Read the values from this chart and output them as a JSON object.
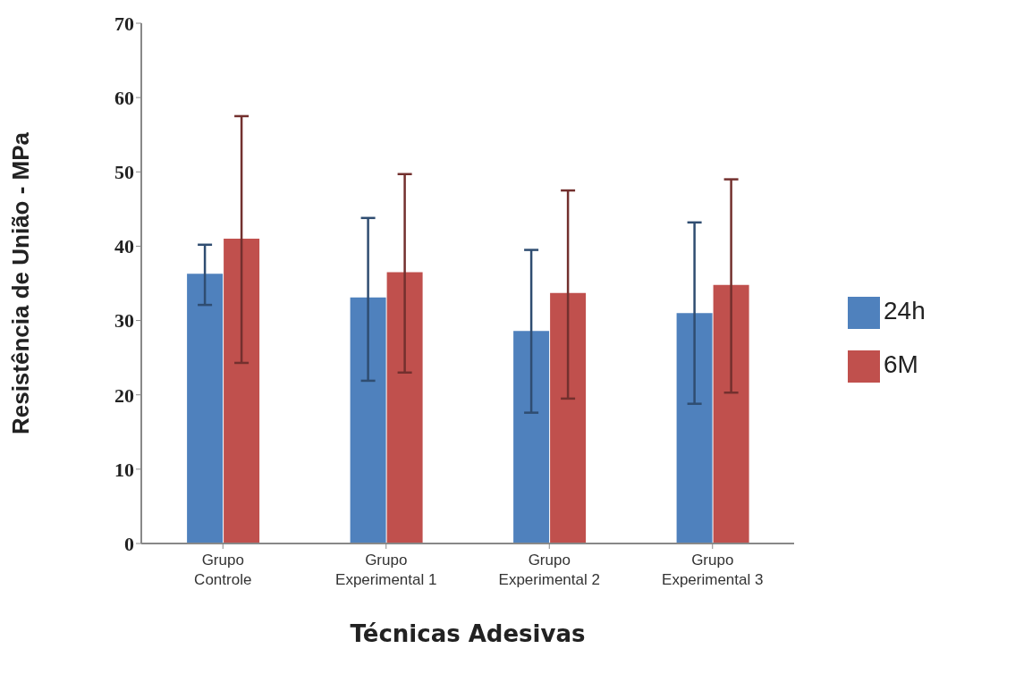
{
  "chart_data": {
    "type": "bar",
    "xlabel": "Técnicas Adesivas",
    "ylabel": "Resistência de União - MPa",
    "categories": [
      "Grupo Controle",
      "Grupo Experimental 1",
      "Grupo Experimental 2",
      "Grupo Experimental 3"
    ],
    "series": [
      {
        "name": "24h",
        "color": "#4f81bd",
        "values": [
          36.3,
          33.1,
          28.6,
          31.0
        ],
        "errors": [
          [
            32.1,
            40.2
          ],
          [
            21.9,
            43.8
          ],
          [
            17.6,
            39.5
          ],
          [
            18.8,
            43.2
          ]
        ]
      },
      {
        "name": "6M",
        "color": "#c0504d",
        "values": [
          41.0,
          36.5,
          33.7,
          34.8
        ],
        "errors": [
          [
            24.3,
            57.5
          ],
          [
            23.0,
            49.7
          ],
          [
            19.5,
            47.5
          ],
          [
            20.3,
            49.0
          ]
        ]
      }
    ],
    "ylim": [
      0,
      70
    ],
    "yticks": [
      0,
      10,
      20,
      30,
      40,
      50,
      60,
      70
    ],
    "grid": false,
    "legend": "right"
  }
}
